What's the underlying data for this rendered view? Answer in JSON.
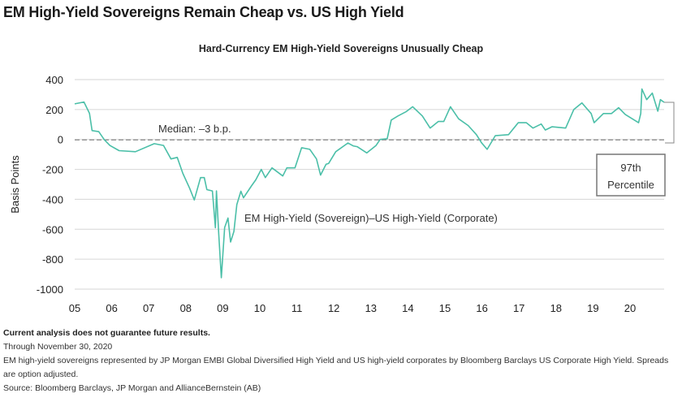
{
  "title": "EM High-Yield Sovereigns Remain Cheap vs. US High Yield",
  "chart_data": {
    "type": "line",
    "title": "Hard-Currency EM High-Yield Sovereigns Unusually Cheap",
    "ylabel": "Basis Points",
    "xlabel": "",
    "ylim": [
      -1000,
      400
    ],
    "xlim": [
      2005,
      2020.92
    ],
    "yticks": [
      400,
      200,
      0,
      -200,
      -400,
      -600,
      -800,
      -1000
    ],
    "xtick_labels": [
      "05",
      "06",
      "07",
      "08",
      "09",
      "10",
      "11",
      "12",
      "13",
      "14",
      "15",
      "16",
      "17",
      "18",
      "19",
      "20"
    ],
    "grid": "horizontal",
    "line_color": "#4bbfa8",
    "series": [
      {
        "name": "EM High-Yield (Sovereign)–US High-Yield (Corporate)",
        "points": [
          [
            2005.0,
            238
          ],
          [
            2005.25,
            250
          ],
          [
            2005.4,
            175
          ],
          [
            2005.47,
            59
          ],
          [
            2005.65,
            52
          ],
          [
            2005.8,
            -2
          ],
          [
            2005.95,
            -40
          ],
          [
            2006.2,
            -75
          ],
          [
            2006.64,
            -82
          ],
          [
            2007.15,
            -28
          ],
          [
            2007.4,
            -40
          ],
          [
            2007.6,
            -130
          ],
          [
            2007.77,
            -120
          ],
          [
            2007.92,
            -227
          ],
          [
            2008.1,
            -324
          ],
          [
            2008.23,
            -404
          ],
          [
            2008.4,
            -255
          ],
          [
            2008.5,
            -255
          ],
          [
            2008.57,
            -335
          ],
          [
            2008.72,
            -344
          ],
          [
            2008.8,
            -590
          ],
          [
            2008.83,
            -344
          ],
          [
            2008.89,
            -630
          ],
          [
            2008.96,
            -924
          ],
          [
            2009.05,
            -588
          ],
          [
            2009.14,
            -525
          ],
          [
            2009.21,
            -685
          ],
          [
            2009.3,
            -615
          ],
          [
            2009.38,
            -435
          ],
          [
            2009.49,
            -346
          ],
          [
            2009.56,
            -390
          ],
          [
            2009.78,
            -308
          ],
          [
            2009.89,
            -270
          ],
          [
            2010.04,
            -200
          ],
          [
            2010.15,
            -255
          ],
          [
            2010.33,
            -190
          ],
          [
            2010.62,
            -244
          ],
          [
            2010.73,
            -190
          ],
          [
            2010.95,
            -190
          ],
          [
            2011.13,
            -55
          ],
          [
            2011.35,
            -66
          ],
          [
            2011.53,
            -130
          ],
          [
            2011.64,
            -238
          ],
          [
            2011.79,
            -166
          ],
          [
            2011.86,
            -160
          ],
          [
            2012.05,
            -82
          ],
          [
            2012.38,
            -24
          ],
          [
            2012.52,
            -43
          ],
          [
            2012.63,
            -48
          ],
          [
            2012.89,
            -90
          ],
          [
            2013.14,
            -40
          ],
          [
            2013.25,
            0
          ],
          [
            2013.44,
            5
          ],
          [
            2013.55,
            130
          ],
          [
            2013.73,
            157
          ],
          [
            2013.95,
            185
          ],
          [
            2014.13,
            219
          ],
          [
            2014.39,
            157
          ],
          [
            2014.6,
            76
          ],
          [
            2014.82,
            120
          ],
          [
            2014.97,
            120
          ],
          [
            2015.15,
            219
          ],
          [
            2015.37,
            138
          ],
          [
            2015.63,
            93
          ],
          [
            2015.85,
            32
          ],
          [
            2015.99,
            -22
          ],
          [
            2016.14,
            -66
          ],
          [
            2016.36,
            25
          ],
          [
            2016.72,
            32
          ],
          [
            2016.98,
            112
          ],
          [
            2017.2,
            112
          ],
          [
            2017.38,
            76
          ],
          [
            2017.6,
            103
          ],
          [
            2017.71,
            63
          ],
          [
            2017.89,
            85
          ],
          [
            2018.26,
            76
          ],
          [
            2018.48,
            200
          ],
          [
            2018.7,
            244
          ],
          [
            2018.95,
            173
          ],
          [
            2019.03,
            112
          ],
          [
            2019.28,
            173
          ],
          [
            2019.5,
            173
          ],
          [
            2019.69,
            212
          ],
          [
            2019.87,
            167
          ],
          [
            2020.23,
            112
          ],
          [
            2020.29,
            173
          ],
          [
            2020.32,
            337
          ],
          [
            2020.45,
            266
          ],
          [
            2020.6,
            310
          ],
          [
            2020.75,
            189
          ],
          [
            2020.82,
            266
          ],
          [
            2020.92,
            248
          ]
        ]
      }
    ],
    "median": {
      "value": -3,
      "label": "Median: –3 b.p."
    },
    "annotation": {
      "line1": "97th",
      "line2": "Percentile"
    }
  },
  "footnotes": {
    "disclaimer": "Current analysis does not guarantee future results.",
    "date": "Through November 30, 2020",
    "description": "EM high-yield sovereigns represented by JP Morgan EMBI Global Diversified High Yield and US high-yield corporates by Bloomberg Barclays US Corporate High Yield. Spreads are option adjusted.",
    "source": "Source: Bloomberg Barclays, JP Morgan and AllianceBernstein (AB)"
  }
}
